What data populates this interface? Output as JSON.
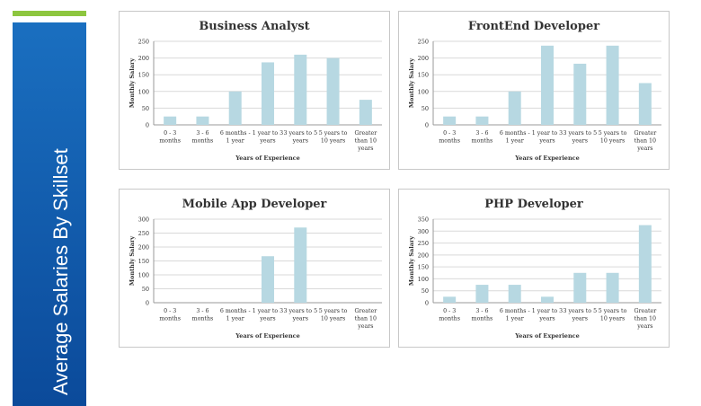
{
  "page_title": "Average Salaries By Skillset",
  "colors": {
    "accent": "#8dc63f",
    "panel": "#0b4a9a",
    "bar": "#b7d8e2",
    "grid": "#d9d9d9"
  },
  "chart_data": [
    {
      "type": "bar",
      "title": "Business Analyst",
      "xlabel": "Years of Experience",
      "ylabel": "Monthly Salary",
      "ylim": [
        0,
        250
      ],
      "yticks": [
        0,
        50,
        100,
        150,
        200,
        250
      ],
      "categories": [
        [
          "0 - 3",
          "months"
        ],
        [
          "3 - 6",
          "months"
        ],
        [
          "6 months -",
          "1 year"
        ],
        [
          "1 year to 3",
          "years"
        ],
        [
          "3 years to 5",
          "years"
        ],
        [
          "5 years to",
          "10 years"
        ],
        [
          "Greater",
          "than 10",
          "years"
        ]
      ],
      "values": [
        25,
        25,
        100,
        187,
        210,
        200,
        75
      ]
    },
    {
      "type": "bar",
      "title": "FrontEnd Developer",
      "xlabel": "Years of Experience",
      "ylabel": "Monthly Salary",
      "ylim": [
        0,
        250
      ],
      "yticks": [
        0,
        50,
        100,
        150,
        200,
        250
      ],
      "categories": [
        [
          "0 - 3",
          "months"
        ],
        [
          "3 - 6",
          "months"
        ],
        [
          "6 months -",
          "1 year"
        ],
        [
          "1 year to 3",
          "years"
        ],
        [
          "3 years to 5",
          "years"
        ],
        [
          "5 years to",
          "10 years"
        ],
        [
          "Greater",
          "than 10",
          "years"
        ]
      ],
      "values": [
        25,
        25,
        100,
        237,
        183,
        237,
        125
      ]
    },
    {
      "type": "bar",
      "title": "Mobile App Developer",
      "xlabel": "Years of Experience",
      "ylabel": "Monthly Salary",
      "ylim": [
        0,
        300
      ],
      "yticks": [
        0,
        50,
        100,
        150,
        200,
        250,
        300
      ],
      "categories": [
        [
          "0 - 3",
          "months"
        ],
        [
          "3 - 6",
          "months"
        ],
        [
          "6 months -",
          "1 year"
        ],
        [
          "1 year to 3",
          "years"
        ],
        [
          "3 years to 5",
          "years"
        ],
        [
          "5 years to",
          "10 years"
        ],
        [
          "Greater",
          "than 10",
          "years"
        ]
      ],
      "values": [
        0,
        0,
        0,
        167,
        270,
        0,
        0
      ]
    },
    {
      "type": "bar",
      "title": "PHP Developer",
      "xlabel": "Years of Experience",
      "ylabel": "Monthly Salary",
      "ylim": [
        0,
        350
      ],
      "yticks": [
        0,
        50,
        100,
        150,
        200,
        250,
        300,
        350
      ],
      "categories": [
        [
          "0 - 3",
          "months"
        ],
        [
          "3 - 6",
          "months"
        ],
        [
          "6 months -",
          "1 year"
        ],
        [
          "1 year to 3",
          "years"
        ],
        [
          "3 years to 5",
          "years"
        ],
        [
          "5 years to",
          "10 years"
        ],
        [
          "Greater",
          "than 10",
          "years"
        ]
      ],
      "values": [
        25,
        75,
        75,
        25,
        125,
        125,
        325
      ]
    }
  ]
}
